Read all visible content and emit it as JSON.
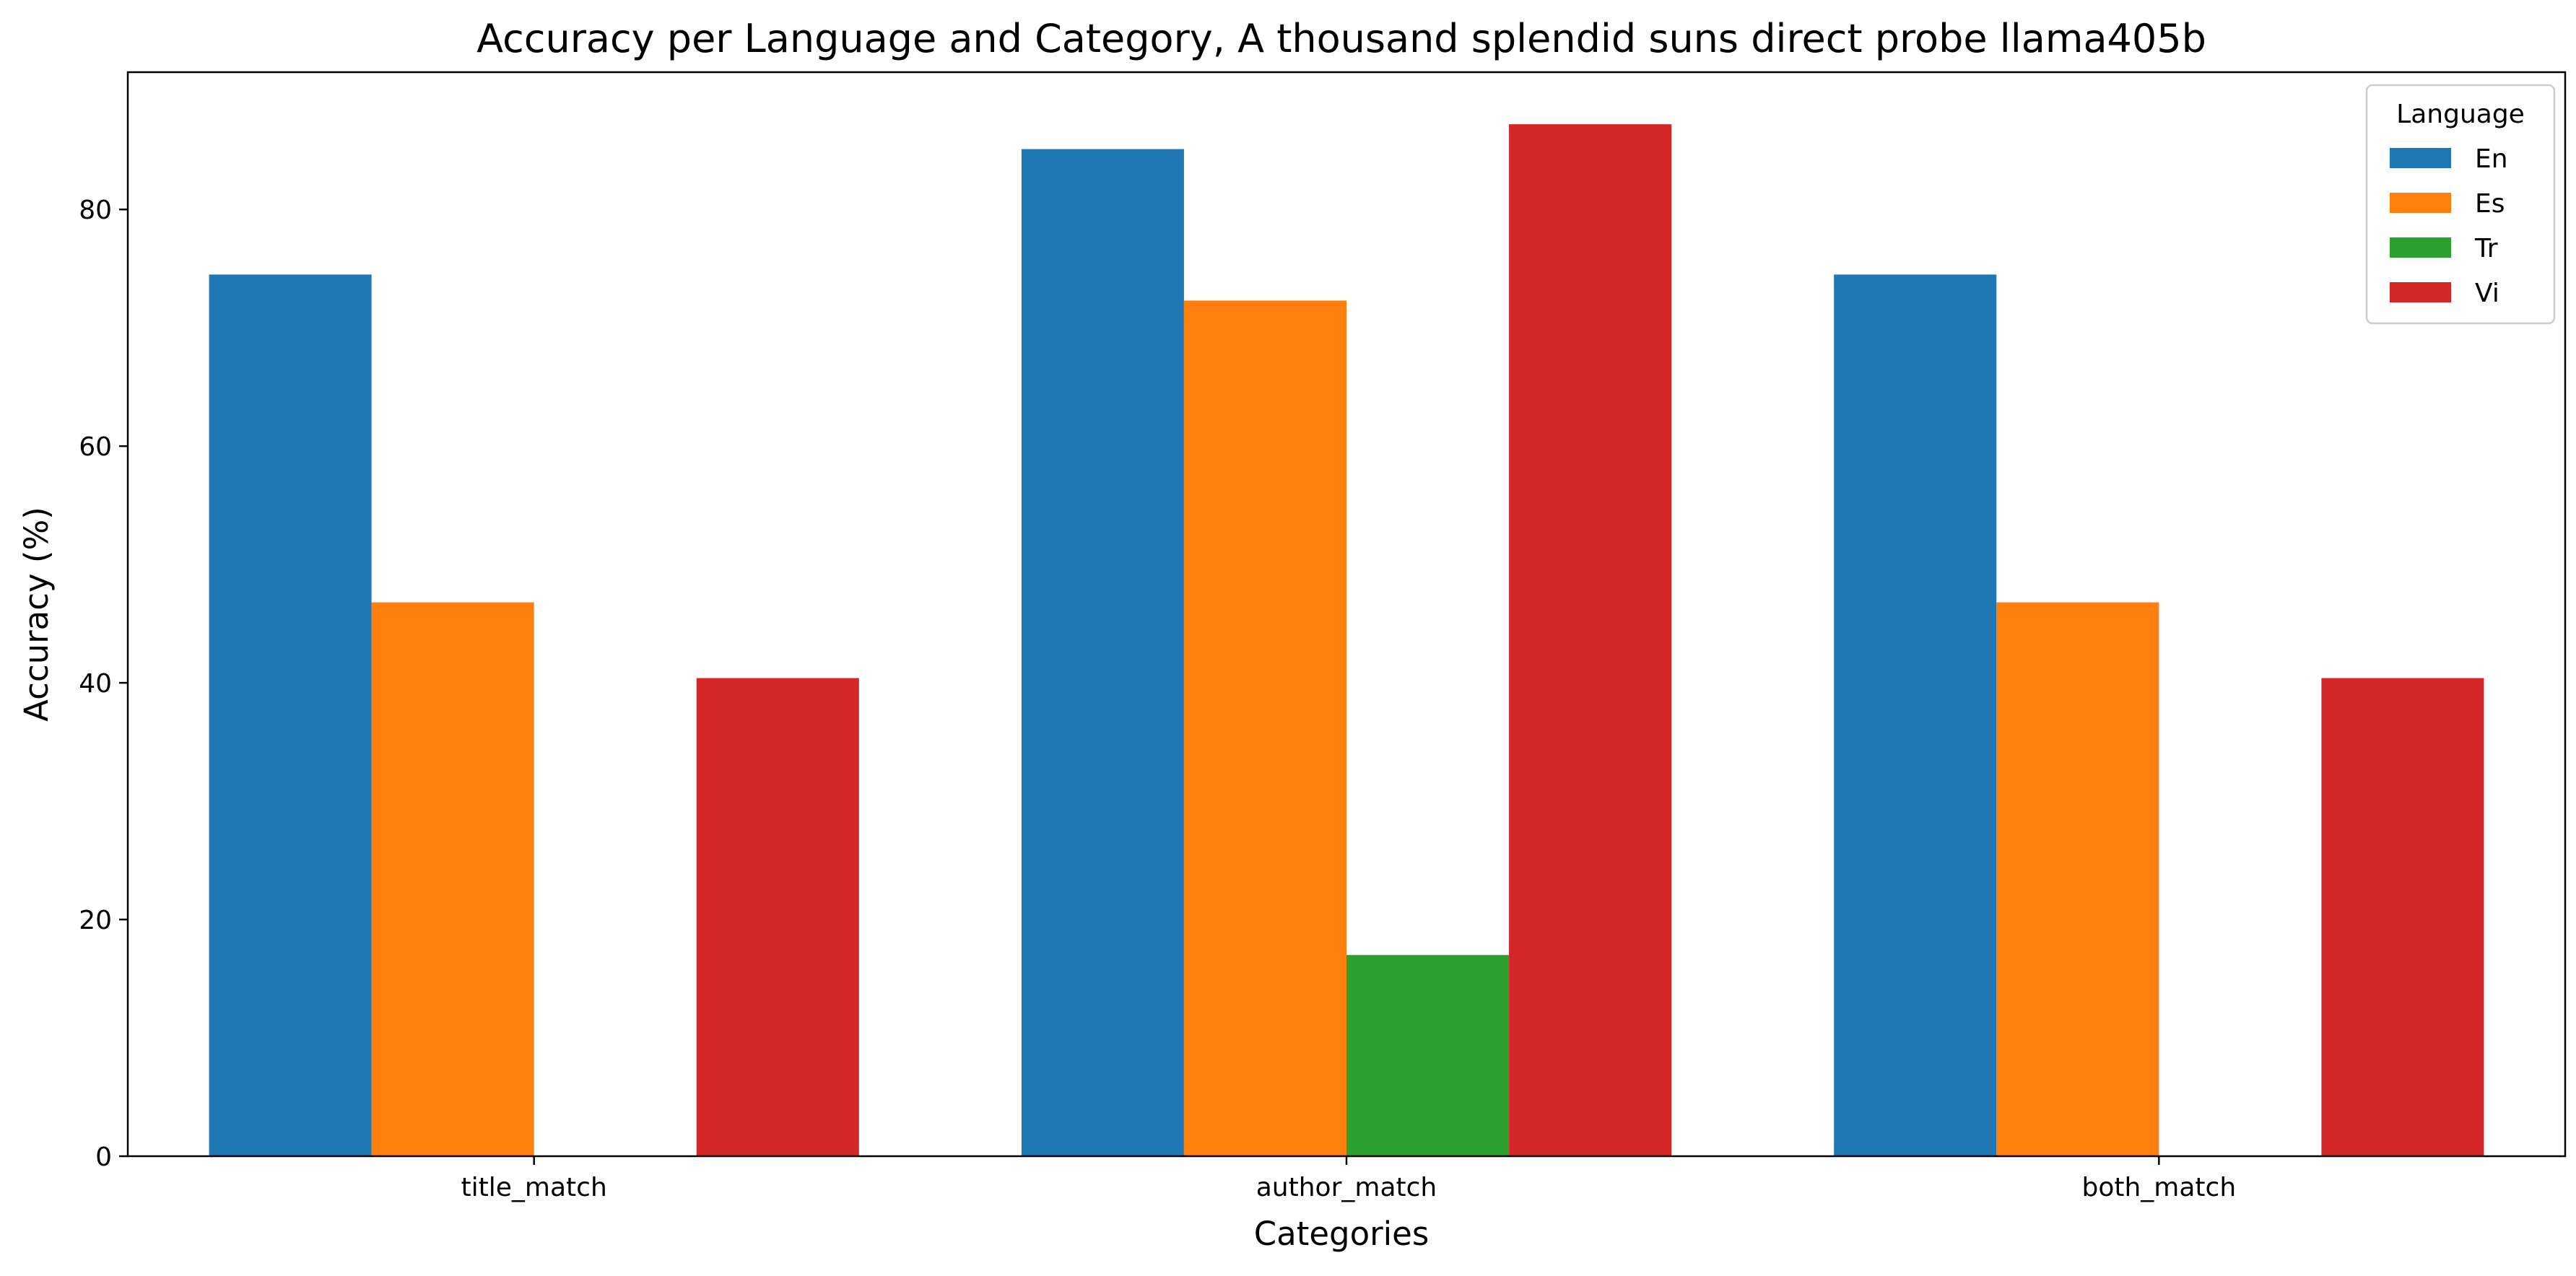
{
  "chart_data": {
    "type": "bar",
    "title": "Accuracy per Language and Category, A thousand splendid suns direct probe llama405b",
    "xlabel": "Categories",
    "ylabel": "Accuracy (%)",
    "categories": [
      "title_match",
      "author_match",
      "both_match"
    ],
    "series": [
      {
        "name": "En",
        "color": "#1f77b4",
        "values": [
          74.5,
          85.1,
          74.5
        ]
      },
      {
        "name": "Es",
        "color": "#ff7f0e",
        "values": [
          46.8,
          72.3,
          46.8
        ]
      },
      {
        "name": "Tr",
        "color": "#2ca02c",
        "values": [
          0,
          17.0,
          0
        ]
      },
      {
        "name": "Vi",
        "color": "#d62728",
        "values": [
          40.4,
          87.2,
          40.4
        ]
      }
    ],
    "ylim": [
      0,
      91.6
    ],
    "yticks": [
      0,
      20,
      40,
      60,
      80
    ],
    "grid": false,
    "legend": {
      "title": "Language",
      "placement": "top-right"
    }
  }
}
